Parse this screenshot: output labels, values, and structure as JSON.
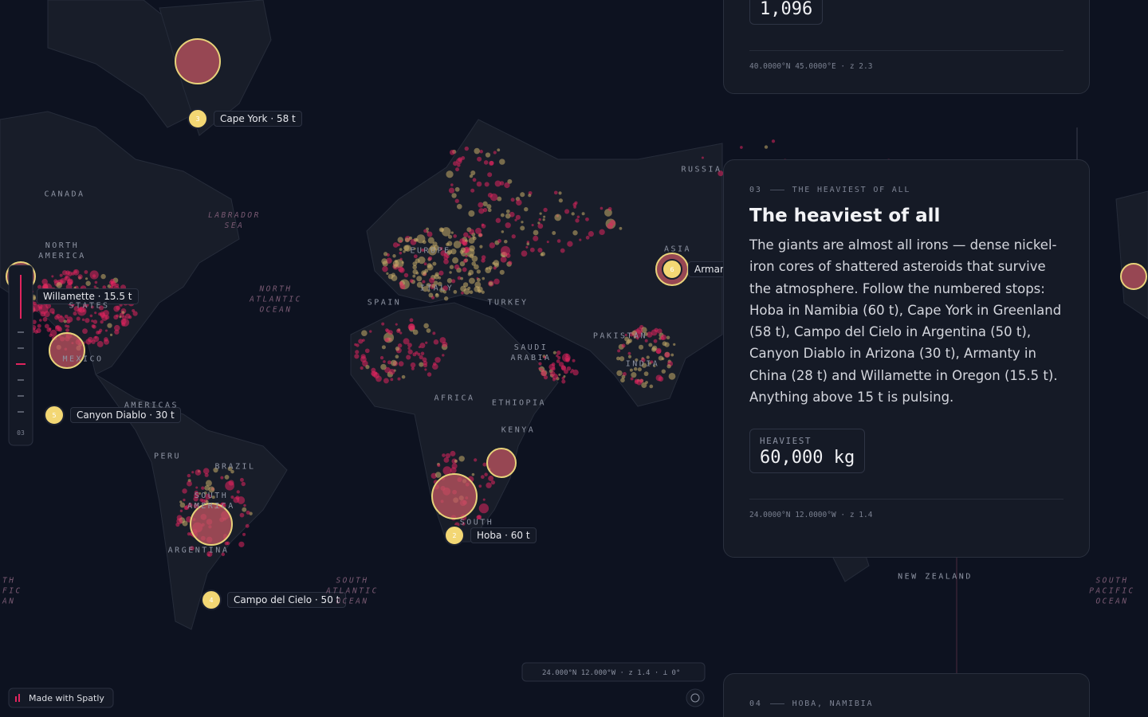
{
  "top_card": {
    "stat_value": "1,096",
    "footer": "40.0000°N 45.0000°E · z 2.3"
  },
  "card": {
    "number": "03",
    "kicker": "THE HEAVIEST OF ALL",
    "title": "The heaviest of all",
    "body": "The giants are almost all irons — dense nickel-iron cores of shattered asteroids that survive the atmosphere. Follow the numbered stops: Hoba in Namibia (60 t), Cape York in Greenland (58 t), Campo del Cielo in Argentina (50 t), Canyon Diablo in Arizona (30 t), Armanty in China (28 t) and Willamette in Oregon (15.5 t). Anything above 15 t is pulsing.",
    "stat_label": "HEAVIEST",
    "stat_value": "60,000 kg",
    "footer": "24.0000°N 12.0000°W · z 1.4"
  },
  "next_card": {
    "number": "04",
    "kicker": "HOBA, NAMIBIA"
  },
  "rail": {
    "step": "03"
  },
  "coords_bar": "24.000°N 12.000°W · z 1.4 · ⟂ 0°",
  "credit": "Made with Spatly",
  "map_labels": [
    "RUSSIA",
    "CANADA",
    "LABRADOR SEA",
    "NORTH AMERICA",
    "STATES",
    "MEXICO",
    "NORTH ATLANTIC OCEAN",
    "EUROPE",
    "ITALY",
    "SPAIN",
    "TURKEY",
    "SAUDI ARABIA",
    "PAKISTAN",
    "INDIA",
    "ASIA",
    "AFRICA",
    "ETHIOPIA",
    "KENYA",
    "SOUTH",
    "AMERICAS",
    "PERU",
    "BRAZIL",
    "SOUTH AMERICA",
    "ARGENTINA",
    "SOUTH ATLANTIC OCEAN",
    "NEW ZEALAND",
    "SOUTH PACIFIC OCEAN",
    "TH FIC AN"
  ],
  "markers": [
    {
      "number": "3",
      "label": "Cape York · 58 t"
    },
    {
      "label": "Willamette · 15.5 t"
    },
    {
      "number": "5",
      "label": "Canyon Diablo · 30 t"
    },
    {
      "number": "2",
      "label": "Hoba · 60 t"
    },
    {
      "number": "4",
      "label": "Campo del Cielo · 50 t"
    },
    {
      "number": "6",
      "label": "Arman"
    }
  ]
}
